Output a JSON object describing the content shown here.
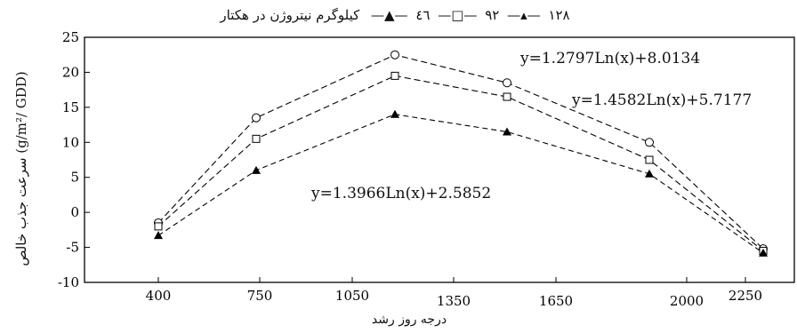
{
  "chart_data": {
    "type": "line",
    "legend": {
      "entries": [
        "۱۲۸",
        "۹۲",
        "٤٦"
      ],
      "unit_text": "کیلوگرم نیتروژن در هکتار",
      "placement": "top"
    },
    "xlabel": "درجه روز رشد",
    "ylabel": "سرعت جذب خالص (g/m²/ GDD)",
    "x_ticks": [
      "400",
      "750",
      "1050",
      "1350",
      "1650",
      "2000",
      "2250"
    ],
    "y_ticks": [
      "25",
      "20",
      "15",
      "10",
      "5",
      "0",
      "-5",
      "-10"
    ],
    "ylim": [
      -10,
      25
    ],
    "grid": false,
    "series": [
      {
        "name": "۱۲۸",
        "marker": "circle",
        "x": [
          400,
          1050,
          1350,
          1650,
          2000,
          2250
        ],
        "values": [
          -1.5,
          13.5,
          22.5,
          18.5,
          10.0,
          -5.2
        ]
      },
      {
        "name": "۹۲",
        "marker": "square",
        "x": [
          400,
          1050,
          1350,
          1650,
          2000,
          2250
        ],
        "values": [
          -2.0,
          10.5,
          19.5,
          16.5,
          7.5,
          -5.5
        ]
      },
      {
        "name": "٤٦",
        "marker": "triangle",
        "x": [
          400,
          1050,
          1350,
          1650,
          2000,
          2250
        ],
        "values": [
          -3.3,
          6.0,
          14.0,
          11.5,
          5.5,
          -5.8
        ]
      }
    ],
    "annotations": [
      "y=1.2797Ln(x)+8.0134",
      "y=1.4582Ln(x)+5.7177",
      "y=1.3966Ln(x)+2.5852"
    ]
  }
}
